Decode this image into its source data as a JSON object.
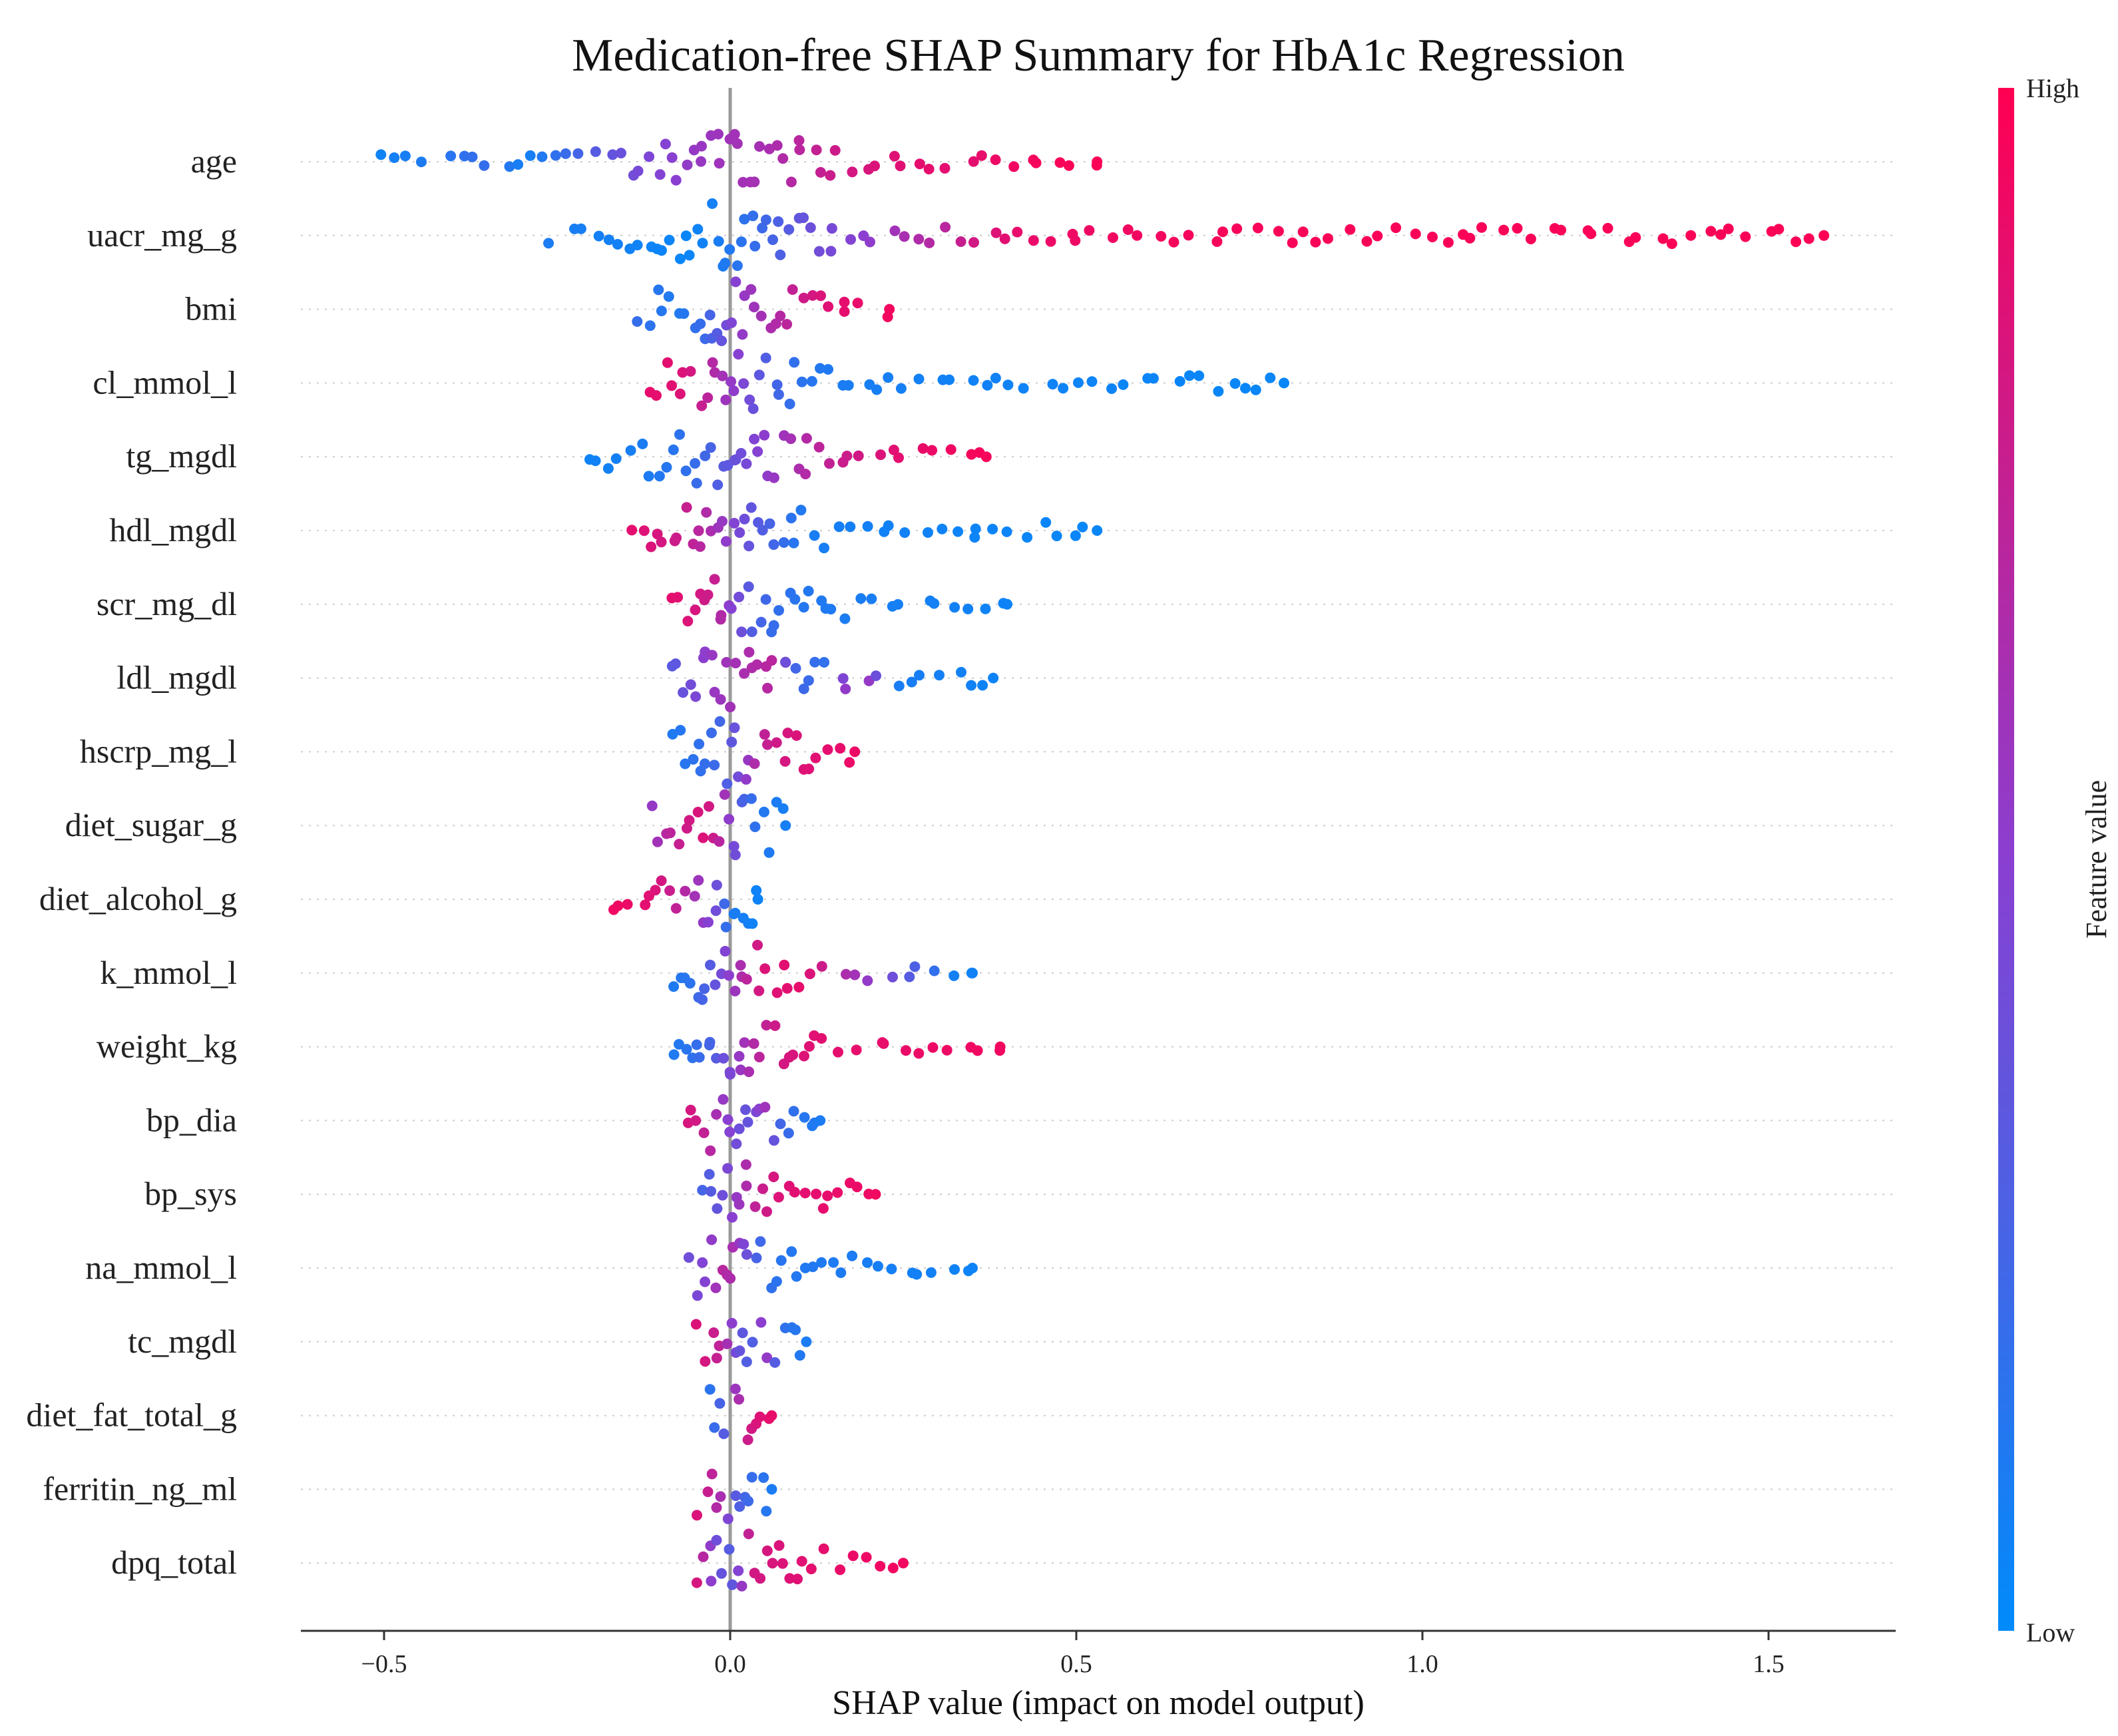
{
  "chart_data": {
    "type": "scatter",
    "subtype": "shap-beeswarm",
    "title": "Medication-free SHAP Summary for HbA1c Regression",
    "xlabel": "SHAP value (impact on model output)",
    "xlim": [
      -0.62,
      1.68
    ],
    "xticks": [
      -0.5,
      0.0,
      0.5,
      1.0,
      1.5
    ],
    "xtick_labels": [
      "−0.5",
      "0.0",
      "0.5",
      "1.0",
      "1.5"
    ],
    "colorbar": {
      "title": "Feature value",
      "high_label": "High",
      "low_label": "Low",
      "high_color": "#ff0052",
      "mid_color": "#8a3fd1",
      "low_color": "#008bfb"
    },
    "features": [
      {
        "name": "age",
        "lo": -0.52,
        "hi": 0.53,
        "pts": [
          [
            -0.51,
            0.05
          ],
          [
            -0.45,
            0.1
          ],
          [
            -0.4,
            0.15
          ],
          [
            -0.36,
            0.2
          ],
          [
            -0.33,
            0.15
          ],
          [
            -0.31,
            0.1
          ],
          [
            -0.3,
            0.05
          ],
          [
            -0.28,
            0.1
          ],
          [
            -0.26,
            0.15
          ],
          [
            -0.24,
            0.2
          ],
          [
            -0.22,
            0.25
          ],
          [
            -0.2,
            0.3
          ],
          [
            -0.15,
            0.4
          ],
          [
            -0.12,
            0.45
          ],
          [
            -0.08,
            0.5
          ],
          [
            -0.05,
            0.55
          ],
          [
            0.0,
            0.6
          ],
          [
            0.05,
            0.62
          ],
          [
            0.1,
            0.7
          ],
          [
            0.15,
            0.78
          ],
          [
            0.18,
            0.82
          ],
          [
            0.22,
            0.85
          ],
          [
            0.26,
            0.88
          ],
          [
            0.3,
            0.9
          ],
          [
            0.33,
            0.85
          ],
          [
            0.36,
            0.9
          ],
          [
            0.38,
            0.92
          ],
          [
            0.42,
            0.95
          ],
          [
            0.46,
            0.97
          ],
          [
            0.53,
            0.98
          ]
        ]
      },
      {
        "name": "uacr_mg_g",
        "lo": -0.27,
        "hi": 1.58,
        "pts": [
          [
            -0.27,
            0.1
          ],
          [
            -0.2,
            0.08
          ],
          [
            -0.15,
            0.06
          ],
          [
            -0.12,
            0.05
          ],
          [
            -0.09,
            0.04
          ],
          [
            -0.07,
            0.03
          ],
          [
            -0.05,
            0.05
          ],
          [
            -0.03,
            0.07
          ],
          [
            0.04,
            0.2
          ],
          [
            0.08,
            0.3
          ],
          [
            0.12,
            0.4
          ],
          [
            0.16,
            0.45
          ],
          [
            0.22,
            0.55
          ],
          [
            0.26,
            0.65
          ],
          [
            0.31,
            0.7
          ],
          [
            0.35,
            0.8
          ],
          [
            0.41,
            0.9
          ],
          [
            0.45,
            0.92
          ],
          [
            0.61,
            0.95
          ],
          [
            0.73,
            0.97
          ],
          [
            1.44,
            0.98
          ],
          [
            1.58,
            0.99
          ]
        ]
      },
      {
        "name": "bmi",
        "lo": -0.14,
        "hi": 0.23,
        "pts": [
          [
            -0.14,
            0.2
          ],
          [
            -0.11,
            0.15
          ],
          [
            -0.08,
            0.1
          ],
          [
            -0.06,
            0.15
          ],
          [
            -0.04,
            0.2
          ],
          [
            -0.02,
            0.3
          ],
          [
            0.0,
            0.45
          ],
          [
            0.02,
            0.55
          ],
          [
            0.04,
            0.6
          ],
          [
            0.06,
            0.65
          ],
          [
            0.08,
            0.7
          ],
          [
            0.1,
            0.78
          ],
          [
            0.12,
            0.82
          ],
          [
            0.15,
            0.88
          ],
          [
            0.18,
            0.9
          ],
          [
            0.23,
            0.95
          ]
        ]
      },
      {
        "name": "cl_mmol_l",
        "lo": -0.13,
        "hi": 0.8,
        "pts": [
          [
            -0.12,
            0.9
          ],
          [
            -0.09,
            0.88
          ],
          [
            -0.07,
            0.85
          ],
          [
            -0.05,
            0.8
          ],
          [
            -0.03,
            0.7
          ],
          [
            -0.01,
            0.6
          ],
          [
            0.01,
            0.5
          ],
          [
            0.03,
            0.4
          ],
          [
            0.05,
            0.3
          ],
          [
            0.08,
            0.2
          ],
          [
            0.11,
            0.15
          ],
          [
            0.15,
            0.1
          ],
          [
            0.22,
            0.08
          ],
          [
            0.33,
            0.06
          ],
          [
            0.47,
            0.05
          ],
          [
            0.59,
            0.04
          ],
          [
            0.8,
            0.03
          ]
        ]
      },
      {
        "name": "tg_mgdl",
        "lo": -0.21,
        "hi": 0.37,
        "pts": [
          [
            -0.21,
            0.05
          ],
          [
            -0.12,
            0.1
          ],
          [
            -0.08,
            0.15
          ],
          [
            -0.05,
            0.2
          ],
          [
            -0.03,
            0.25
          ],
          [
            0.0,
            0.35
          ],
          [
            0.03,
            0.45
          ],
          [
            0.06,
            0.55
          ],
          [
            0.09,
            0.62
          ],
          [
            0.12,
            0.7
          ],
          [
            0.15,
            0.75
          ],
          [
            0.2,
            0.82
          ],
          [
            0.24,
            0.88
          ],
          [
            0.29,
            0.92
          ],
          [
            0.33,
            0.95
          ],
          [
            0.37,
            0.97
          ]
        ]
      },
      {
        "name": "hdl_mgdl",
        "lo": -0.15,
        "hi": 0.53,
        "pts": [
          [
            -0.15,
            0.9
          ],
          [
            -0.12,
            0.85
          ],
          [
            -0.09,
            0.8
          ],
          [
            -0.06,
            0.75
          ],
          [
            -0.03,
            0.65
          ],
          [
            0.0,
            0.5
          ],
          [
            0.03,
            0.35
          ],
          [
            0.06,
            0.25
          ],
          [
            0.09,
            0.15
          ],
          [
            0.11,
            0.1
          ],
          [
            0.14,
            0.08
          ],
          [
            0.31,
            0.05
          ],
          [
            0.53,
            0.03
          ]
        ]
      },
      {
        "name": "scr_mg_dl",
        "lo": -0.09,
        "hi": 0.4,
        "pts": [
          [
            -0.09,
            0.9
          ],
          [
            -0.06,
            0.85
          ],
          [
            -0.04,
            0.8
          ],
          [
            -0.02,
            0.75
          ],
          [
            0.0,
            0.5
          ],
          [
            0.03,
            0.3
          ],
          [
            0.06,
            0.2
          ],
          [
            0.09,
            0.15
          ],
          [
            0.12,
            0.12
          ],
          [
            0.17,
            0.1
          ],
          [
            0.24,
            0.08
          ],
          [
            0.29,
            0.07
          ],
          [
            0.4,
            0.05
          ]
        ]
      },
      {
        "name": "ldl_mgdl",
        "lo": -0.09,
        "hi": 0.38,
        "pts": [
          [
            -0.09,
            0.3
          ],
          [
            -0.06,
            0.4
          ],
          [
            -0.03,
            0.55
          ],
          [
            0.0,
            0.6
          ],
          [
            0.03,
            0.65
          ],
          [
            0.06,
            0.7
          ],
          [
            0.09,
            0.25
          ],
          [
            0.12,
            0.2
          ],
          [
            0.15,
            0.15
          ],
          [
            0.18,
            0.85
          ],
          [
            0.23,
            0.1
          ],
          [
            0.29,
            0.08
          ],
          [
            0.38,
            0.05
          ]
        ]
      },
      {
        "name": "hscrp_mg_l",
        "lo": -0.09,
        "hi": 0.18,
        "pts": [
          [
            -0.09,
            0.1
          ],
          [
            -0.06,
            0.15
          ],
          [
            -0.03,
            0.2
          ],
          [
            -0.01,
            0.25
          ],
          [
            0.01,
            0.4
          ],
          [
            0.04,
            0.7
          ],
          [
            0.07,
            0.8
          ],
          [
            0.1,
            0.85
          ],
          [
            0.13,
            0.88
          ],
          [
            0.18,
            0.92
          ]
        ]
      },
      {
        "name": "diet_sugar_g",
        "lo": -0.12,
        "hi": 0.08,
        "pts": [
          [
            -0.12,
            0.5
          ],
          [
            -0.09,
            0.7
          ],
          [
            -0.06,
            0.8
          ],
          [
            -0.04,
            0.85
          ],
          [
            -0.02,
            0.75
          ],
          [
            0.0,
            0.5
          ],
          [
            0.02,
            0.25
          ],
          [
            0.04,
            0.15
          ],
          [
            0.06,
            0.1
          ],
          [
            0.08,
            0.08
          ]
        ]
      },
      {
        "name": "diet_alcohol_g",
        "lo": -0.18,
        "hi": 0.04,
        "pts": [
          [
            -0.18,
            0.95
          ],
          [
            -0.15,
            0.92
          ],
          [
            -0.12,
            0.88
          ],
          [
            -0.1,
            0.82
          ],
          [
            -0.07,
            0.7
          ],
          [
            -0.04,
            0.55
          ],
          [
            -0.02,
            0.4
          ],
          [
            0.0,
            0.1
          ],
          [
            0.02,
            0.08
          ],
          [
            0.04,
            0.05
          ]
        ]
      },
      {
        "name": "k_mmol_l",
        "lo": -0.09,
        "hi": 0.35,
        "pts": [
          [
            -0.09,
            0.1
          ],
          [
            -0.06,
            0.15
          ],
          [
            -0.03,
            0.3
          ],
          [
            -0.01,
            0.45
          ],
          [
            0.01,
            0.6
          ],
          [
            0.03,
            0.75
          ],
          [
            0.05,
            0.85
          ],
          [
            0.1,
            0.9
          ],
          [
            0.33,
            0.05
          ],
          [
            0.35,
            0.06
          ]
        ]
      },
      {
        "name": "weight_kg",
        "lo": -0.09,
        "hi": 0.39,
        "pts": [
          [
            -0.09,
            0.1
          ],
          [
            -0.06,
            0.15
          ],
          [
            -0.03,
            0.25
          ],
          [
            0.0,
            0.45
          ],
          [
            0.02,
            0.6
          ],
          [
            0.04,
            0.7
          ],
          [
            0.07,
            0.8
          ],
          [
            0.1,
            0.85
          ],
          [
            0.13,
            0.88
          ],
          [
            0.29,
            0.92
          ],
          [
            0.39,
            0.95
          ]
        ]
      },
      {
        "name": "bp_dia",
        "lo": -0.07,
        "hi": 0.13,
        "pts": [
          [
            -0.07,
            0.85
          ],
          [
            -0.05,
            0.8
          ],
          [
            -0.03,
            0.7
          ],
          [
            -0.01,
            0.55
          ],
          [
            0.01,
            0.4
          ],
          [
            0.03,
            0.35
          ],
          [
            0.05,
            0.6
          ],
          [
            0.07,
            0.25
          ],
          [
            0.1,
            0.15
          ],
          [
            0.13,
            0.1
          ]
        ]
      },
      {
        "name": "bp_sys",
        "lo": -0.05,
        "hi": 0.21,
        "pts": [
          [
            -0.05,
            0.2
          ],
          [
            -0.03,
            0.3
          ],
          [
            -0.01,
            0.4
          ],
          [
            0.01,
            0.55
          ],
          [
            0.03,
            0.7
          ],
          [
            0.05,
            0.78
          ],
          [
            0.07,
            0.85
          ],
          [
            0.1,
            0.88
          ],
          [
            0.19,
            0.92
          ],
          [
            0.21,
            0.94
          ]
        ]
      },
      {
        "name": "na_mmol_l",
        "lo": -0.06,
        "hi": 0.35,
        "pts": [
          [
            -0.06,
            0.4
          ],
          [
            -0.03,
            0.5
          ],
          [
            -0.01,
            0.7
          ],
          [
            0.01,
            0.6
          ],
          [
            0.03,
            0.3
          ],
          [
            0.05,
            0.2
          ],
          [
            0.07,
            0.15
          ],
          [
            0.1,
            0.12
          ],
          [
            0.18,
            0.1
          ],
          [
            0.22,
            0.08
          ],
          [
            0.35,
            0.05
          ]
        ]
      },
      {
        "name": "tc_mgdl",
        "lo": -0.05,
        "hi": 0.11,
        "pts": [
          [
            -0.05,
            0.85
          ],
          [
            -0.03,
            0.8
          ],
          [
            -0.01,
            0.7
          ],
          [
            0.01,
            0.4
          ],
          [
            0.03,
            0.25
          ],
          [
            0.05,
            0.6
          ],
          [
            0.07,
            0.2
          ],
          [
            0.09,
            0.15
          ],
          [
            0.11,
            0.1
          ]
        ]
      },
      {
        "name": "diet_fat_total_g",
        "lo": -0.03,
        "hi": 0.06,
        "pts": [
          [
            -0.03,
            0.15
          ],
          [
            -0.01,
            0.3
          ],
          [
            0.0,
            0.5
          ],
          [
            0.01,
            0.6
          ],
          [
            0.02,
            0.75
          ],
          [
            0.04,
            0.85
          ],
          [
            0.06,
            0.9
          ]
        ]
      },
      {
        "name": "ferritin_ng_ml",
        "lo": -0.05,
        "hi": 0.06,
        "pts": [
          [
            -0.05,
            0.85
          ],
          [
            -0.03,
            0.75
          ],
          [
            -0.01,
            0.6
          ],
          [
            0.0,
            0.4
          ],
          [
            0.01,
            0.3
          ],
          [
            0.03,
            0.2
          ],
          [
            0.05,
            0.15
          ],
          [
            0.06,
            0.1
          ]
        ]
      },
      {
        "name": "dpq_total",
        "lo": -0.05,
        "hi": 0.25,
        "pts": [
          [
            -0.05,
            0.85
          ],
          [
            -0.02,
            0.4
          ],
          [
            0.0,
            0.3
          ],
          [
            0.02,
            0.6
          ],
          [
            0.03,
            0.8
          ],
          [
            0.08,
            0.85
          ],
          [
            0.11,
            0.88
          ],
          [
            0.14,
            0.9
          ],
          [
            0.25,
            0.95
          ]
        ]
      }
    ]
  }
}
